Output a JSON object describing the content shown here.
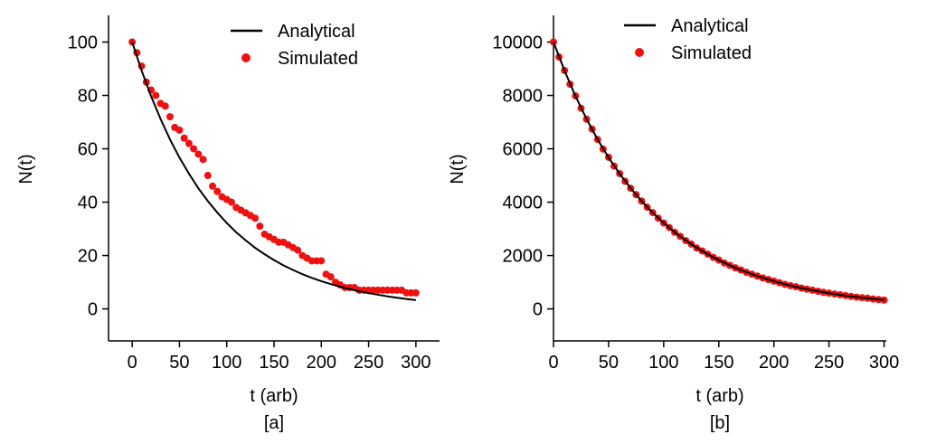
{
  "chart_data": [
    {
      "type": "line",
      "xlabel": "t (arb)",
      "ylabel": "N(t)",
      "caption": "[a]",
      "legend": "upper right",
      "xlim": [
        -25,
        325
      ],
      "ylim": [
        -12,
        110
      ],
      "xticks": [
        0,
        50,
        100,
        150,
        200,
        250,
        300
      ],
      "yticks": [
        0,
        20,
        40,
        60,
        80,
        100
      ],
      "series": [
        {
          "name": "Analytical",
          "color": "#000000",
          "style": "line",
          "x": [
            0,
            10,
            20,
            30,
            40,
            50,
            60,
            70,
            80,
            90,
            100,
            110,
            120,
            130,
            140,
            150,
            160,
            170,
            180,
            190,
            200,
            210,
            220,
            230,
            240,
            250,
            260,
            270,
            280,
            290,
            300
          ],
          "values": [
            100,
            89.3,
            79.7,
            71.2,
            63.5,
            56.7,
            50.7,
            45.2,
            40.4,
            36.1,
            32.2,
            28.7,
            25.7,
            22.9,
            20.5,
            18.3,
            16.3,
            14.6,
            13.0,
            11.6,
            10.4,
            9.3,
            8.3,
            7.4,
            6.6,
            5.9,
            5.3,
            4.7,
            4.2,
            3.7,
            3.3
          ]
        },
        {
          "name": "Simulated",
          "color": "#ee1111",
          "style": "markers",
          "x": [
            0,
            5,
            10,
            15,
            20,
            25,
            30,
            35,
            40,
            45,
            50,
            55,
            60,
            65,
            70,
            75,
            80,
            85,
            90,
            95,
            100,
            105,
            110,
            115,
            120,
            125,
            130,
            135,
            140,
            145,
            150,
            155,
            160,
            165,
            170,
            175,
            180,
            185,
            190,
            195,
            200,
            205,
            210,
            215,
            220,
            225,
            230,
            235,
            240,
            245,
            250,
            255,
            260,
            265,
            270,
            275,
            280,
            285,
            290,
            295,
            300
          ],
          "values": [
            100,
            96,
            91,
            85,
            82,
            80,
            77,
            76,
            72,
            68,
            67,
            64,
            62,
            60,
            58,
            56,
            50,
            46,
            44,
            42,
            41,
            40,
            38,
            37,
            36,
            35,
            34,
            31,
            28,
            27,
            26,
            25,
            25,
            24,
            23,
            22,
            20,
            19,
            18,
            18,
            18,
            13,
            12,
            10,
            9,
            8,
            8,
            8,
            7,
            7,
            7,
            7,
            7,
            7,
            7,
            7,
            7,
            7,
            6,
            6,
            6
          ]
        }
      ]
    },
    {
      "type": "line",
      "xlabel": "t (arb)",
      "ylabel": "N(t)",
      "caption": "[b]",
      "legend": "upper left",
      "xlim": [
        0,
        302
      ],
      "ylim": [
        -1200,
        11000
      ],
      "xticks": [
        0,
        50,
        100,
        150,
        200,
        250,
        300
      ],
      "yticks": [
        0,
        2000,
        4000,
        6000,
        8000,
        10000
      ],
      "series": [
        {
          "name": "Analytical",
          "color": "#000000",
          "style": "line",
          "x": [
            0,
            10,
            20,
            30,
            40,
            50,
            60,
            70,
            80,
            90,
            100,
            110,
            120,
            130,
            140,
            150,
            160,
            170,
            180,
            190,
            200,
            210,
            220,
            230,
            240,
            250,
            260,
            270,
            280,
            290,
            300
          ],
          "values": [
            10000,
            8928,
            7971,
            7117,
            6354,
            5673,
            5065,
            4523,
            4038,
            3605,
            3219,
            2874,
            2566,
            2291,
            2046,
            1826,
            1631,
            1456,
            1300,
            1161,
            1036,
            925,
            826,
            738,
            659,
            588,
            525,
            469,
            419,
            374,
            334
          ]
        },
        {
          "name": "Simulated",
          "color": "#ee1111",
          "style": "markers",
          "x": [
            0,
            5,
            10,
            15,
            20,
            25,
            30,
            35,
            40,
            45,
            50,
            55,
            60,
            65,
            70,
            75,
            80,
            85,
            90,
            95,
            100,
            105,
            110,
            115,
            120,
            125,
            130,
            135,
            140,
            145,
            150,
            155,
            160,
            165,
            170,
            175,
            180,
            185,
            190,
            195,
            200,
            205,
            210,
            215,
            220,
            225,
            230,
            235,
            240,
            245,
            250,
            255,
            260,
            265,
            270,
            275,
            280,
            285,
            290,
            295,
            300
          ],
          "values": [
            10000,
            9440,
            8935,
            8420,
            7980,
            7520,
            7110,
            6740,
            6350,
            5990,
            5680,
            5350,
            5070,
            4780,
            4520,
            4280,
            4040,
            3810,
            3610,
            3400,
            3220,
            3050,
            2870,
            2720,
            2560,
            2430,
            2280,
            2170,
            2050,
            1930,
            1830,
            1720,
            1630,
            1540,
            1460,
            1370,
            1300,
            1230,
            1160,
            1100,
            1040,
            980,
            920,
            870,
            830,
            780,
            740,
            700,
            660,
            620,
            590,
            560,
            530,
            500,
            470,
            440,
            420,
            400,
            370,
            350,
            330
          ]
        }
      ]
    }
  ]
}
